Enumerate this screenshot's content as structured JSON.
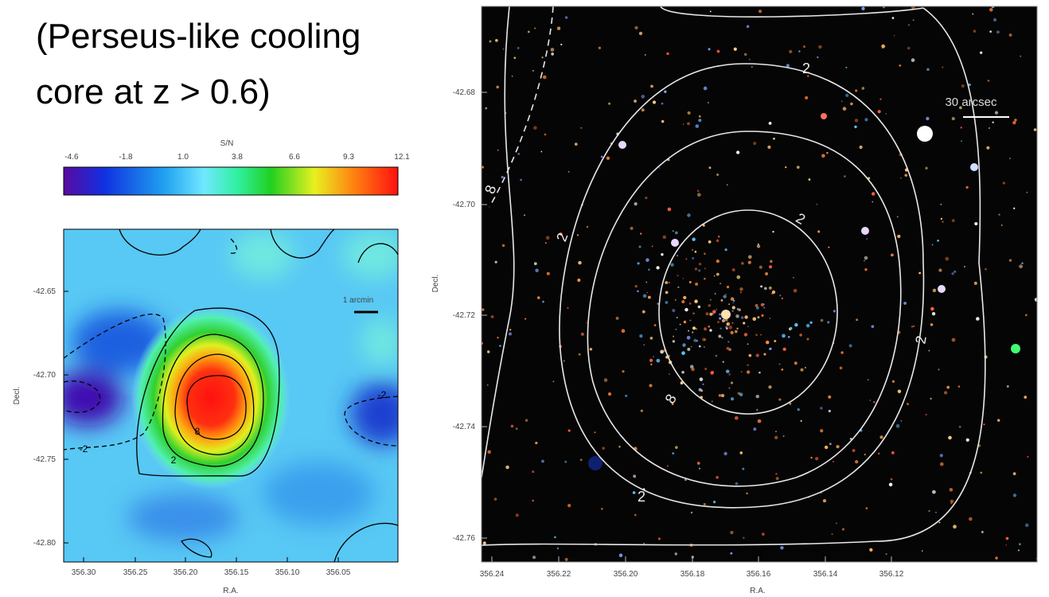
{
  "title": {
    "lines": [
      "(Perseus-like cooling",
      "core at z > 0.6)"
    ]
  },
  "colorbar": {
    "label": "S/N",
    "ticks": [
      "-4.6",
      "-1.8",
      "1.0",
      "3.8",
      "6.6",
      "9.3",
      "12.1"
    ]
  },
  "left_panel": {
    "xticks": [
      "356.30",
      "356.25",
      "356.20",
      "356.15",
      "356.10",
      "356.05"
    ],
    "yticks": [
      "-42.65",
      "-42.70",
      "-42.75",
      "-42.80"
    ],
    "xlabel": "R.A.",
    "ylabel": "Decl.",
    "scale_label": "1 arcmin",
    "contour_labels": [
      "-2",
      "-2",
      "2",
      "8"
    ]
  },
  "right_panel": {
    "xticks": [
      "356.24",
      "356.22",
      "356.20",
      "356.18",
      "356.16",
      "356.14",
      "356.12"
    ],
    "yticks": [
      "-42.68",
      "-42.70",
      "-42.72",
      "-42.74",
      "-42.76"
    ],
    "xlabel": "R.A.",
    "ylabel": "Decl.",
    "scale_label": "30 arcsec",
    "contour_labels": [
      "2",
      "2",
      "2",
      "2",
      "2",
      "8",
      "8"
    ]
  }
}
